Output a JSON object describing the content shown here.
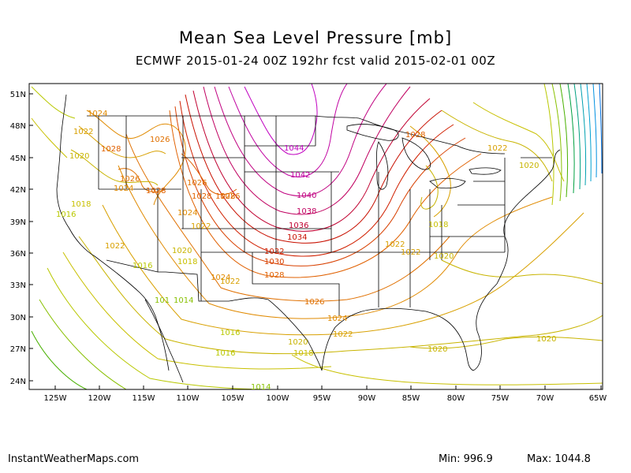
{
  "title": "Mean Sea Level Pressure [mb]",
  "subtitle": "ECMWF 2015-01-24 00Z 192hr fcst valid 2015-02-01 00Z",
  "credit": "InstantWeatherMaps.com",
  "stats": {
    "min_label": "Min:",
    "min_value": "996.9",
    "max_label": "Max:",
    "max_value": "1044.8"
  },
  "axes": {
    "lat_ticks": [
      "51N",
      "48N",
      "45N",
      "42N",
      "39N",
      "36N",
      "33N",
      "30N",
      "27N",
      "24N"
    ],
    "lon_ticks": [
      "125W",
      "120W",
      "115W",
      "110W",
      "105W",
      "100W",
      "95W",
      "90W",
      "85W",
      "80W",
      "75W",
      "70W",
      "65W"
    ]
  },
  "isobar_labels": [
    {
      "text": "1024",
      "color": "#e08a00"
    },
    {
      "text": "1022",
      "color": "#d8a000"
    },
    {
      "text": "1028",
      "color": "#e06000"
    },
    {
      "text": "1020",
      "color": "#c8b400"
    },
    {
      "text": "1026",
      "color": "#e07000"
    },
    {
      "text": "1026",
      "color": "#e07000"
    },
    {
      "text": "1024",
      "color": "#e08a00"
    },
    {
      "text": "1028",
      "color": "#e06000"
    },
    {
      "text": "1028",
      "color": "#e06000"
    },
    {
      "text": "1026",
      "color": "#e07000"
    },
    {
      "text": "1028",
      "color": "#e06000"
    },
    {
      "text": "1026",
      "color": "#e07000"
    },
    {
      "text": "1018",
      "color": "#c8c000"
    },
    {
      "text": "1016",
      "color": "#b8c800"
    },
    {
      "text": "1024",
      "color": "#e08a00"
    },
    {
      "text": "1022",
      "color": "#d8a000"
    },
    {
      "text": "1022",
      "color": "#d8a000"
    },
    {
      "text": "1020",
      "color": "#c8b400"
    },
    {
      "text": "1018",
      "color": "#c8c000"
    },
    {
      "text": "1016",
      "color": "#b8c800"
    },
    {
      "text": "1024",
      "color": "#e08a00"
    },
    {
      "text": "1022",
      "color": "#d8a000"
    },
    {
      "text": "1014",
      "color": "#88c000"
    },
    {
      "text": "101",
      "color": "#88c000"
    },
    {
      "text": "1044",
      "color": "#c000c0"
    },
    {
      "text": "1042",
      "color": "#c000a0"
    },
    {
      "text": "1040",
      "color": "#c00080"
    },
    {
      "text": "1038",
      "color": "#c00060"
    },
    {
      "text": "1036",
      "color": "#c00030"
    },
    {
      "text": "1034",
      "color": "#c81000"
    },
    {
      "text": "1032",
      "color": "#d02000"
    },
    {
      "text": "1030",
      "color": "#d84000"
    },
    {
      "text": "1028",
      "color": "#e06000"
    },
    {
      "text": "1026",
      "color": "#e07000"
    },
    {
      "text": "1024",
      "color": "#e08a00"
    },
    {
      "text": "1022",
      "color": "#d8a000"
    },
    {
      "text": "1020",
      "color": "#c8b400"
    },
    {
      "text": "1018",
      "color": "#c8c000"
    },
    {
      "text": "1016",
      "color": "#b8c800"
    },
    {
      "text": "1016",
      "color": "#b8c800"
    },
    {
      "text": "1014",
      "color": "#88c000"
    },
    {
      "text": "1028",
      "color": "#e06000"
    },
    {
      "text": "1022",
      "color": "#d8a000"
    },
    {
      "text": "1018",
      "color": "#c8c000"
    },
    {
      "text": "1022",
      "color": "#d8a000"
    },
    {
      "text": "1020",
      "color": "#c8b400"
    },
    {
      "text": "1020",
      "color": "#c8b400"
    },
    {
      "text": "1020",
      "color": "#c8b400"
    },
    {
      "text": "1022",
      "color": "#d8a000"
    },
    {
      "text": "1020",
      "color": "#c8b400"
    }
  ],
  "colors": {
    "border": "#000000",
    "state_lines": "#000000",
    "coast": "#000000"
  }
}
